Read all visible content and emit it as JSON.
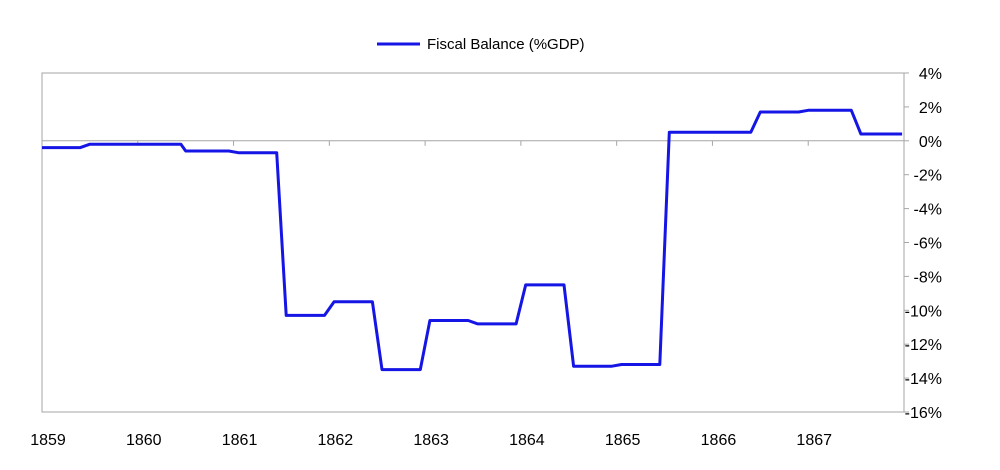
{
  "chart_data": {
    "type": "line",
    "title": "",
    "xlabel": "",
    "ylabel": "",
    "legend_position": "top-center",
    "grid": false,
    "x_ticks": [
      "1859",
      "1860",
      "1861",
      "1862",
      "1863",
      "1864",
      "1865",
      "1866",
      "1867"
    ],
    "xlim": [
      1859,
      1868
    ],
    "ylim": [
      -16,
      4
    ],
    "y_ticks": [
      4,
      2,
      0,
      -2,
      -4,
      -6,
      -8,
      -10,
      -12,
      -14,
      -16
    ],
    "y_tick_labels": [
      "4%",
      "2%",
      "0%",
      "-2%",
      "-4%",
      "-6%",
      "-8%",
      "-10%",
      "-12%",
      "-14%",
      "-16%"
    ],
    "series": [
      {
        "name": "Fiscal Balance (%GDP)",
        "color": "#1515e6",
        "x": [
          1859.0,
          1859.4,
          1859.5,
          1859.95,
          1860.45,
          1860.5,
          1860.95,
          1861.05,
          1861.45,
          1861.55,
          1861.95,
          1862.05,
          1862.45,
          1862.55,
          1862.95,
          1863.05,
          1863.45,
          1863.55,
          1863.95,
          1864.05,
          1864.45,
          1864.55,
          1864.95,
          1865.05,
          1865.45,
          1865.55,
          1866.4,
          1866.5,
          1866.9,
          1867.0,
          1867.45,
          1867.55,
          1867.98
        ],
        "values": [
          -0.4,
          -0.4,
          -0.2,
          -0.2,
          -0.2,
          -0.6,
          -0.6,
          -0.7,
          -0.7,
          -10.3,
          -10.3,
          -9.5,
          -9.5,
          -13.5,
          -13.5,
          -10.6,
          -10.6,
          -10.8,
          -10.8,
          -8.5,
          -8.5,
          -13.3,
          -13.3,
          -13.2,
          -13.2,
          0.5,
          0.5,
          1.7,
          1.7,
          1.8,
          1.8,
          0.4,
          0.4
        ]
      }
    ]
  }
}
